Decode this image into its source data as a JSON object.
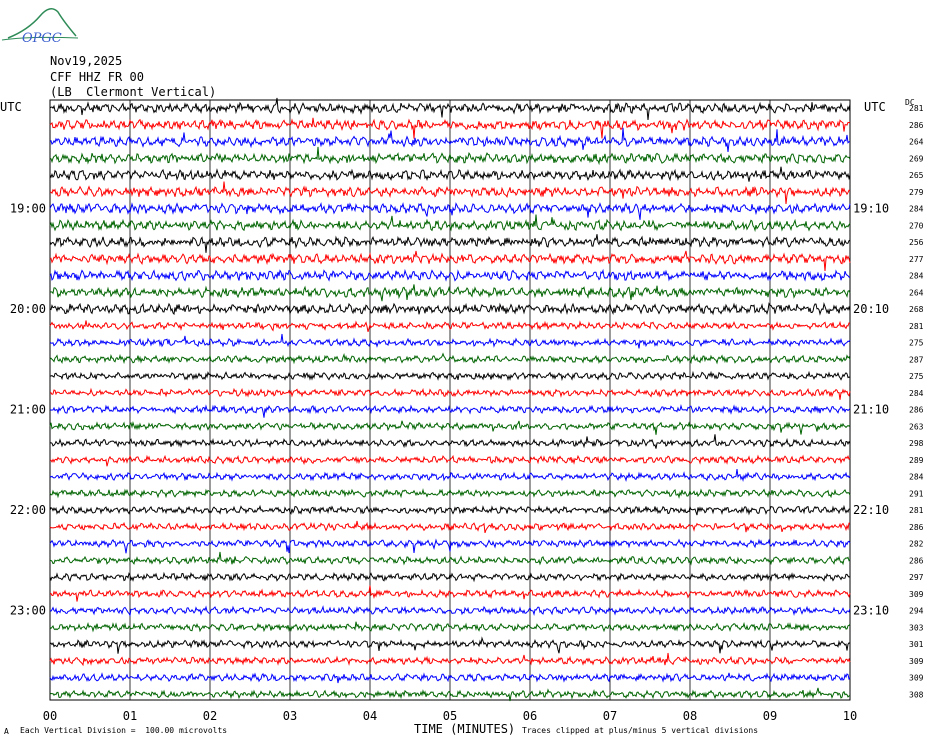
{
  "logo": {
    "text": "OPGC"
  },
  "header": {
    "date": "Nov19,2025",
    "station": "CFF HHZ FR 00",
    "location": "(LB  Clermont Vertical)"
  },
  "left_axis_label": "UTC",
  "right_axis_label": "UTC",
  "dc_label": "DC",
  "footer": {
    "xlabel": "TIME (MINUTES)",
    "scale_note": "Each Vertical Division =  100.00 microvolts",
    "clip_note": "Traces clipped at plus/minus 5 vertical divisions",
    "corner_mark": "A"
  },
  "chart_data": {
    "type": "line",
    "title": "CFF HHZ FR 00",
    "xlabel": "TIME (MINUTES)",
    "ylabel": "UTC",
    "x_range": [
      0,
      10
    ],
    "x_ticks": [
      "00",
      "01",
      "02",
      "03",
      "04",
      "05",
      "06",
      "07",
      "08",
      "09",
      "10"
    ],
    "grid": true,
    "colors": [
      "#000000",
      "#ff0000",
      "#0000ff",
      "#006400"
    ],
    "left_hour_labels": [
      {
        "label": "19:00",
        "trace": 6
      },
      {
        "label": "20:00",
        "trace": 12
      },
      {
        "label": "21:00",
        "trace": 18
      },
      {
        "label": "22:00",
        "trace": 24
      },
      {
        "label": "23:00",
        "trace": 30
      }
    ],
    "right_hour_labels": [
      {
        "label": "19:10",
        "trace": 6
      },
      {
        "label": "20:10",
        "trace": 12
      },
      {
        "label": "21:10",
        "trace": 18
      },
      {
        "label": "22:10",
        "trace": 24
      },
      {
        "label": "23:10",
        "trace": 30
      }
    ],
    "dc_offsets": [
      "281",
      "286",
      "264",
      "269",
      "265",
      "279",
      "284",
      "270",
      "256",
      "277",
      "284",
      "264",
      "268",
      "281",
      "275",
      "287",
      "275",
      "284",
      "286",
      "263",
      "298",
      "289",
      "284",
      "291",
      "281",
      "286",
      "282",
      "286",
      "297",
      "309",
      "294",
      "303",
      "301",
      "309",
      "309",
      "308"
    ],
    "trace_count": 36
  }
}
